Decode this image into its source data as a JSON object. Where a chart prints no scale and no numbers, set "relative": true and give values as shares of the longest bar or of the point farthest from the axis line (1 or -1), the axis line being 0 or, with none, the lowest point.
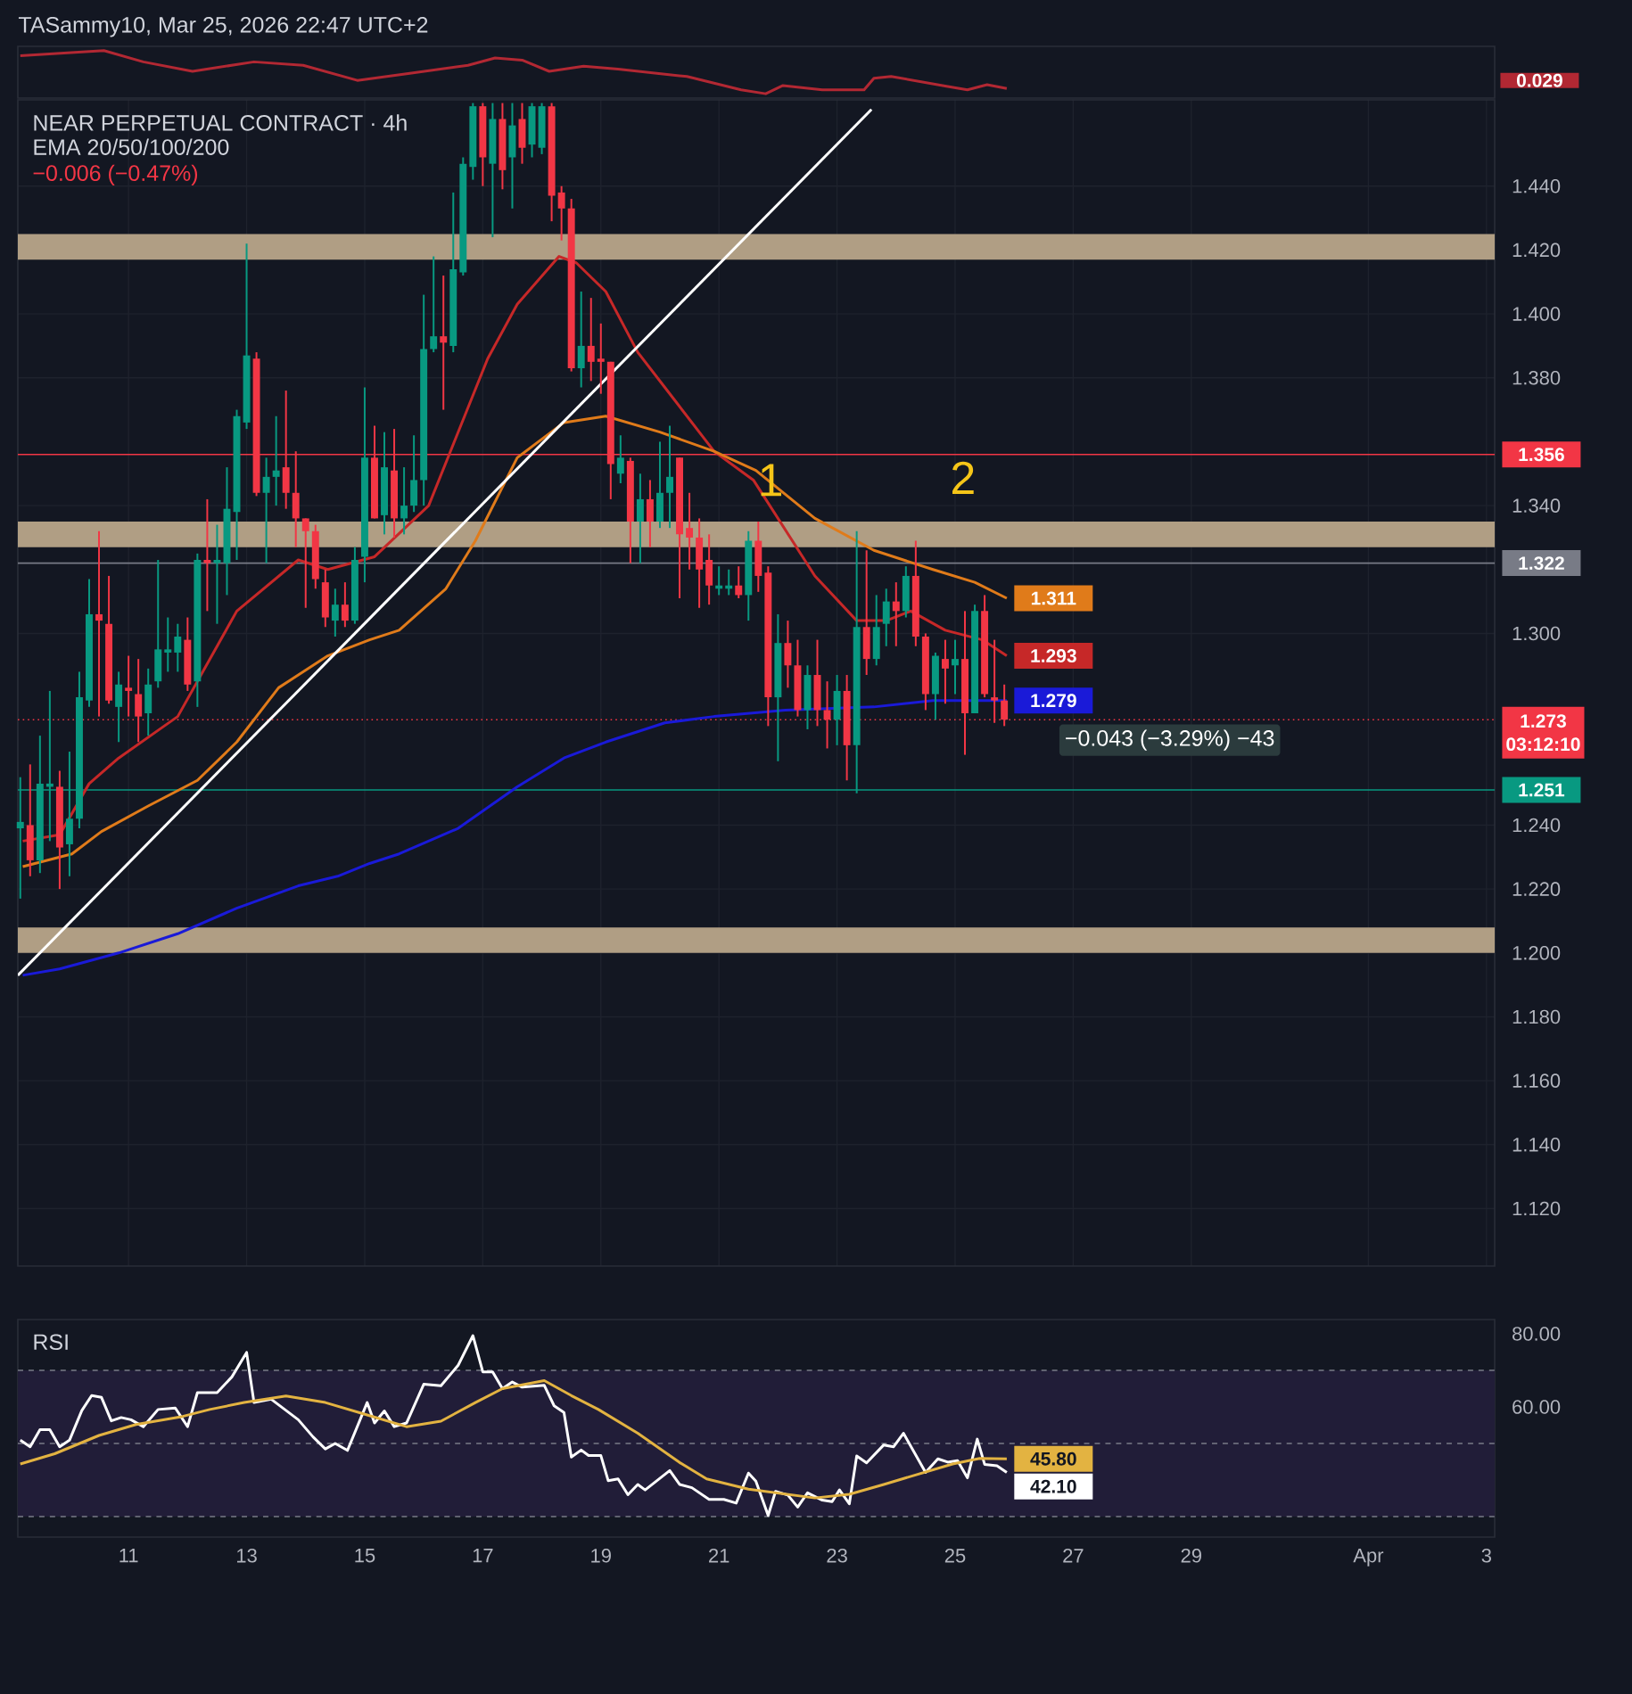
{
  "chart_data": [
    {
      "type": "line",
      "title": "TASammy10, Mar 25, 2026 22:47 UTC+2",
      "relative": true,
      "xlim": [
        "2026-03-09T03:00",
        "2026-04-03T03:20"
      ],
      "series": [
        {
          "color": "#b22833",
          "x": [
            "2026-03-09T04:00",
            "2026-03-10T14:00",
            "2026-03-11T06:00",
            "2026-03-12T02:00",
            "2026-03-13T03:00",
            "2026-03-13T23:00",
            "2026-03-14T21:00",
            "2026-03-15T19:00",
            "2026-03-16T18:00",
            "2026-03-17T05:00",
            "2026-03-17T16:00",
            "2026-03-18T03:00",
            "2026-03-18T17:00",
            "2026-03-19T07:00",
            "2026-03-20T11:00",
            "2026-03-21T09:00",
            "2026-03-21T19:00",
            "2026-03-22T02:00",
            "2026-03-22T18:00",
            "2026-03-23T11:00",
            "2026-03-23T15:00",
            "2026-03-23T22:00",
            "2026-03-24T21:00",
            "2026-03-25T05:00",
            "2026-03-25T13:00",
            "2026-03-25T21:00"
          ],
          "values": [
            0.88,
            1.0,
            0.74,
            0.52,
            0.74,
            0.66,
            0.31,
            0.48,
            0.66,
            0.83,
            0.78,
            0.52,
            0.64,
            0.57,
            0.4,
            0.09,
            0,
            0.19,
            0.09,
            0.09,
            0.36,
            0.4,
            0.17,
            0.09,
            0.21,
            0.12
          ]
        }
      ],
      "annotations": [
        "0.029"
      ]
    },
    {
      "type": "candlestick",
      "title": "NEAR PERPETUAL CONTRACT · 4h",
      "subtitle": "EMA 20/50/100/200",
      "xlim": [
        "2026-03-09T03:00",
        "2026-04-03T03:20"
      ],
      "ylim": [
        1.102,
        1.467
      ],
      "tick_labels": "y",
      "grid": true,
      "xticks": [
        "2026-03-11",
        "2026-03-13",
        "2026-03-15",
        "2026-03-17",
        "2026-03-19",
        "2026-03-21",
        "2026-03-23",
        "2026-03-25",
        "2026-03-27",
        "2026-03-29",
        "2026-04-01",
        "2026-04-03"
      ],
      "yticks": [
        {
          "value": 1.12,
          "label": "1.120"
        },
        {
          "value": 1.14,
          "label": "1.140"
        },
        {
          "value": 1.16,
          "label": "1.160"
        },
        {
          "value": 1.18,
          "label": "1.180"
        },
        {
          "value": 1.2,
          "label": "1.200"
        },
        {
          "value": 1.22,
          "label": "1.220"
        },
        {
          "value": 1.24,
          "label": "1.240"
        },
        {
          "value": 1.3,
          "label": "1.300"
        },
        {
          "value": 1.34,
          "label": "1.340"
        },
        {
          "value": 1.38,
          "label": "1.380"
        },
        {
          "value": 1.4,
          "label": "1.400"
        },
        {
          "value": 1.42,
          "label": "1.420"
        },
        {
          "value": 1.44,
          "label": "1.440"
        }
      ],
      "x": [
        "2026-03-09T04:00",
        "2026-03-09T08:00",
        "2026-03-09T12:00",
        "2026-03-09T16:00",
        "2026-03-09T20:00",
        "2026-03-10T00:00",
        "2026-03-10T04:00",
        "2026-03-10T08:00",
        "2026-03-10T12:00",
        "2026-03-10T16:00",
        "2026-03-10T20:00",
        "2026-03-11T00:00",
        "2026-03-11T04:00",
        "2026-03-11T08:00",
        "2026-03-11T12:00",
        "2026-03-11T16:00",
        "2026-03-11T20:00",
        "2026-03-12T00:00",
        "2026-03-12T04:00",
        "2026-03-12T08:00",
        "2026-03-12T12:00",
        "2026-03-12T16:00",
        "2026-03-12T20:00",
        "2026-03-13T00:00",
        "2026-03-13T04:00",
        "2026-03-13T08:00",
        "2026-03-13T12:00",
        "2026-03-13T16:00",
        "2026-03-13T20:00",
        "2026-03-14T00:00",
        "2026-03-14T04:00",
        "2026-03-14T08:00",
        "2026-03-14T12:00",
        "2026-03-14T16:00",
        "2026-03-14T20:00",
        "2026-03-15T00:00",
        "2026-03-15T04:00",
        "2026-03-15T08:00",
        "2026-03-15T12:00",
        "2026-03-15T16:00",
        "2026-03-15T20:00",
        "2026-03-16T00:00",
        "2026-03-16T04:00",
        "2026-03-16T08:00",
        "2026-03-16T12:00",
        "2026-03-16T16:00",
        "2026-03-16T20:00",
        "2026-03-17T00:00",
        "2026-03-17T04:00",
        "2026-03-17T08:00",
        "2026-03-17T12:00",
        "2026-03-17T16:00",
        "2026-03-17T20:00",
        "2026-03-18T00:00",
        "2026-03-18T04:00",
        "2026-03-18T08:00",
        "2026-03-18T12:00",
        "2026-03-18T16:00",
        "2026-03-18T20:00",
        "2026-03-19T00:00",
        "2026-03-19T04:00",
        "2026-03-19T08:00",
        "2026-03-19T12:00",
        "2026-03-19T16:00",
        "2026-03-19T20:00",
        "2026-03-20T00:00",
        "2026-03-20T04:00",
        "2026-03-20T08:00",
        "2026-03-20T12:00",
        "2026-03-20T16:00",
        "2026-03-20T20:00",
        "2026-03-21T00:00",
        "2026-03-21T04:00",
        "2026-03-21T08:00",
        "2026-03-21T12:00",
        "2026-03-21T16:00",
        "2026-03-21T20:00",
        "2026-03-22T00:00",
        "2026-03-22T04:00",
        "2026-03-22T08:00",
        "2026-03-22T12:00",
        "2026-03-22T16:00",
        "2026-03-22T20:00",
        "2026-03-23T00:00",
        "2026-03-23T04:00",
        "2026-03-23T08:00",
        "2026-03-23T12:00",
        "2026-03-23T16:00",
        "2026-03-23T20:00",
        "2026-03-24T00:00",
        "2026-03-24T04:00",
        "2026-03-24T08:00",
        "2026-03-24T12:00",
        "2026-03-24T16:00",
        "2026-03-24T20:00",
        "2026-03-25T00:00",
        "2026-03-25T04:00",
        "2026-03-25T08:00",
        "2026-03-25T12:00",
        "2026-03-25T16:00",
        "2026-03-25T20:00"
      ],
      "ohlc": [
        [
          1.239,
          1.255,
          1.217,
          1.241
        ],
        [
          1.24,
          1.259,
          1.224,
          1.229
        ],
        [
          1.229,
          1.268,
          1.225,
          1.253
        ],
        [
          1.252,
          1.282,
          1.235,
          1.253
        ],
        [
          1.252,
          1.257,
          1.22,
          1.233
        ],
        [
          1.234,
          1.263,
          1.224,
          1.242
        ],
        [
          1.242,
          1.288,
          1.239,
          1.28
        ],
        [
          1.279,
          1.317,
          1.277,
          1.306
        ],
        [
          1.306,
          1.332,
          1.274,
          1.304
        ],
        [
          1.303,
          1.318,
          1.278,
          1.279
        ],
        [
          1.277,
          1.288,
          1.266,
          1.284
        ],
        [
          1.283,
          1.293,
          1.274,
          1.282
        ],
        [
          1.281,
          1.292,
          1.266,
          1.274
        ],
        [
          1.275,
          1.289,
          1.268,
          1.284
        ],
        [
          1.285,
          1.323,
          1.283,
          1.295
        ],
        [
          1.294,
          1.305,
          1.288,
          1.295
        ],
        [
          1.294,
          1.303,
          1.288,
          1.299
        ],
        [
          1.298,
          1.305,
          1.282,
          1.284
        ],
        [
          1.285,
          1.325,
          1.277,
          1.323
        ],
        [
          1.323,
          1.342,
          1.307,
          1.322
        ],
        [
          1.322,
          1.334,
          1.303,
          1.323
        ],
        [
          1.322,
          1.352,
          1.312,
          1.339
        ],
        [
          1.338,
          1.37,
          1.323,
          1.368
        ],
        [
          1.366,
          1.422,
          1.364,
          1.387
        ],
        [
          1.386,
          1.388,
          1.343,
          1.344
        ],
        [
          1.344,
          1.355,
          1.322,
          1.349
        ],
        [
          1.349,
          1.368,
          1.34,
          1.351
        ],
        [
          1.352,
          1.376,
          1.339,
          1.344
        ],
        [
          1.344,
          1.357,
          1.327,
          1.336
        ],
        [
          1.336,
          1.336,
          1.308,
          1.332
        ],
        [
          1.332,
          1.334,
          1.314,
          1.317
        ],
        [
          1.316,
          1.32,
          1.302,
          1.305
        ],
        [
          1.304,
          1.314,
          1.299,
          1.309
        ],
        [
          1.309,
          1.316,
          1.302,
          1.304
        ],
        [
          1.304,
          1.327,
          1.303,
          1.323
        ],
        [
          1.324,
          1.377,
          1.316,
          1.355
        ],
        [
          1.355,
          1.365,
          1.336,
          1.336
        ],
        [
          1.337,
          1.363,
          1.331,
          1.352
        ],
        [
          1.351,
          1.364,
          1.33,
          1.336
        ],
        [
          1.336,
          1.352,
          1.331,
          1.34
        ],
        [
          1.34,
          1.362,
          1.338,
          1.348
        ],
        [
          1.348,
          1.406,
          1.34,
          1.389
        ],
        [
          1.389,
          1.418,
          1.388,
          1.393
        ],
        [
          1.393,
          1.412,
          1.37,
          1.391
        ],
        [
          1.39,
          1.438,
          1.388,
          1.414
        ],
        [
          1.413,
          1.449,
          1.412,
          1.447
        ],
        [
          1.446,
          1.466,
          1.442,
          1.465
        ],
        [
          1.465,
          1.466,
          1.44,
          1.449
        ],
        [
          1.447,
          1.466,
          1.424,
          1.461
        ],
        [
          1.461,
          1.466,
          1.439,
          1.445
        ],
        [
          1.449,
          1.466,
          1.433,
          1.459
        ],
        [
          1.461,
          1.466,
          1.447,
          1.452
        ],
        [
          1.453,
          1.466,
          1.449,
          1.465
        ],
        [
          1.452,
          1.466,
          1.45,
          1.465
        ],
        [
          1.465,
          1.466,
          1.429,
          1.437
        ],
        [
          1.438,
          1.44,
          1.423,
          1.433
        ],
        [
          1.433,
          1.436,
          1.382,
          1.383
        ],
        [
          1.383,
          1.407,
          1.377,
          1.39
        ],
        [
          1.39,
          1.405,
          1.379,
          1.385
        ],
        [
          1.386,
          1.397,
          1.375,
          1.385
        ],
        [
          1.385,
          1.385,
          1.342,
          1.353
        ],
        [
          1.35,
          1.362,
          1.347,
          1.355
        ],
        [
          1.354,
          1.355,
          1.322,
          1.335
        ],
        [
          1.335,
          1.35,
          1.322,
          1.342
        ],
        [
          1.342,
          1.348,
          1.327,
          1.335
        ],
        [
          1.335,
          1.36,
          1.333,
          1.344
        ],
        [
          1.344,
          1.365,
          1.333,
          1.349
        ],
        [
          1.355,
          1.355,
          1.311,
          1.331
        ],
        [
          1.333,
          1.344,
          1.32,
          1.33
        ],
        [
          1.33,
          1.336,
          1.308,
          1.32
        ],
        [
          1.323,
          1.331,
          1.309,
          1.315
        ],
        [
          1.314,
          1.321,
          1.312,
          1.315
        ],
        [
          1.314,
          1.32,
          1.312,
          1.315
        ],
        [
          1.315,
          1.321,
          1.311,
          1.312
        ],
        [
          1.312,
          1.332,
          1.304,
          1.329
        ],
        [
          1.329,
          1.335,
          1.313,
          1.318
        ],
        [
          1.319,
          1.321,
          1.271,
          1.28
        ],
        [
          1.28,
          1.306,
          1.26,
          1.297
        ],
        [
          1.297,
          1.304,
          1.283,
          1.29
        ],
        [
          1.29,
          1.298,
          1.274,
          1.276
        ],
        [
          1.276,
          1.29,
          1.27,
          1.287
        ],
        [
          1.287,
          1.298,
          1.271,
          1.276
        ],
        [
          1.276,
          1.285,
          1.264,
          1.273
        ],
        [
          1.273,
          1.287,
          1.265,
          1.282
        ],
        [
          1.282,
          1.287,
          1.254,
          1.265
        ],
        [
          1.265,
          1.332,
          1.25,
          1.302
        ],
        [
          1.302,
          1.326,
          1.287,
          1.292
        ],
        [
          1.292,
          1.312,
          1.29,
          1.302
        ],
        [
          1.303,
          1.314,
          1.296,
          1.31
        ],
        [
          1.31,
          1.316,
          1.296,
          1.307
        ],
        [
          1.307,
          1.321,
          1.305,
          1.318
        ],
        [
          1.318,
          1.329,
          1.296,
          1.299
        ],
        [
          1.299,
          1.3,
          1.276,
          1.281
        ],
        [
          1.281,
          1.294,
          1.273,
          1.293
        ],
        [
          1.292,
          1.298,
          1.278,
          1.289
        ],
        [
          1.29,
          1.298,
          1.281,
          1.292
        ],
        [
          1.292,
          1.307,
          1.262,
          1.275
        ],
        [
          1.275,
          1.309,
          1.275,
          1.307
        ],
        [
          1.307,
          1.312,
          1.28,
          1.281
        ],
        [
          1.28,
          1.298,
          1.272,
          1.279
        ],
        [
          1.279,
          1.284,
          1.271,
          1.273
        ]
      ],
      "series": [
        {
          "type": "line",
          "color": "#c62828",
          "x": [
            "2026-03-09T05:00",
            "2026-03-09T20:00",
            "2026-03-10T08:00",
            "2026-03-10T20:00",
            "2026-03-11T20:00",
            "2026-03-12T20:00",
            "2026-03-13T21:00",
            "2026-03-14T09:00",
            "2026-03-15T04:00",
            "2026-03-16T02:00",
            "2026-03-17T02:00",
            "2026-03-17T14:00",
            "2026-03-18T07:00",
            "2026-03-18T14:00",
            "2026-03-19T02:00",
            "2026-03-19T15:00",
            "2026-03-20T02:00",
            "2026-03-20T22:00",
            "2026-03-21T14:00",
            "2026-03-22T15:00",
            "2026-03-23T08:00",
            "2026-03-23T20:00",
            "2026-03-24T06:00",
            "2026-03-24T20:00",
            "2026-03-25T11:00",
            "2026-03-25T21:00"
          ],
          "values": [
            1.235,
            1.237,
            1.253,
            1.261,
            1.274,
            1.307,
            1.323,
            1.32,
            1.324,
            1.34,
            1.386,
            1.403,
            1.418,
            1.416,
            1.407,
            1.388,
            1.377,
            1.357,
            1.348,
            1.318,
            1.304,
            1.304,
            1.307,
            1.301,
            1.298,
            1.293
          ],
          "value_labels": [
            null,
            null,
            null,
            null,
            null,
            null,
            null,
            null,
            null,
            null,
            null,
            null,
            null,
            null,
            null,
            null,
            null,
            null,
            null,
            null,
            null,
            null,
            null,
            null,
            null,
            "1.293"
          ]
        },
        {
          "type": "line",
          "color": "#e07b1a",
          "x": [
            "2026-03-09T05:00",
            "2026-03-10T01:00",
            "2026-03-10T13:00",
            "2026-03-11T08:00",
            "2026-03-12T04:00",
            "2026-03-12T20:00",
            "2026-03-13T13:00",
            "2026-03-14T09:00",
            "2026-03-15T02:00",
            "2026-03-15T14:00",
            "2026-03-16T09:00",
            "2026-03-16T21:00",
            "2026-03-17T14:00",
            "2026-03-18T09:00",
            "2026-03-19T02:00",
            "2026-03-20T00:00",
            "2026-03-20T22:00",
            "2026-03-21T15:00",
            "2026-03-22T15:00",
            "2026-03-23T15:00",
            "2026-03-24T15:00",
            "2026-03-25T08:00",
            "2026-03-25T21:00"
          ],
          "values": [
            1.227,
            1.231,
            1.238,
            1.246,
            1.254,
            1.266,
            1.283,
            1.293,
            1.298,
            1.301,
            1.314,
            1.329,
            1.355,
            1.366,
            1.368,
            1.363,
            1.357,
            1.351,
            1.336,
            1.326,
            1.32,
            1.316,
            1.311
          ],
          "value_labels": [
            null,
            null,
            null,
            null,
            null,
            null,
            null,
            null,
            null,
            null,
            null,
            null,
            null,
            null,
            null,
            null,
            null,
            null,
            null,
            null,
            null,
            null,
            "1.311"
          ]
        },
        {
          "type": "line",
          "color": "#1a1ad8",
          "x": [
            "2026-03-09T05:00",
            "2026-03-09T20:00",
            "2026-03-10T20:00",
            "2026-03-11T20:00",
            "2026-03-12T20:00",
            "2026-03-13T21:00",
            "2026-03-14T13:00",
            "2026-03-15T02:00",
            "2026-03-15T14:00",
            "2026-03-16T14:00",
            "2026-03-17T14:00",
            "2026-03-18T09:00",
            "2026-03-19T02:00",
            "2026-03-20T02:00",
            "2026-03-20T22:00",
            "2026-03-22T03:00",
            "2026-03-23T15:00",
            "2026-03-24T15:00",
            "2026-03-25T21:00"
          ],
          "values": [
            1.193,
            1.195,
            1.2,
            1.206,
            1.214,
            1.221,
            1.224,
            1.228,
            1.231,
            1.239,
            1.252,
            1.261,
            1.266,
            1.272,
            1.274,
            1.276,
            1.277,
            1.279,
            1.279
          ],
          "value_labels": [
            null,
            null,
            null,
            null,
            null,
            null,
            null,
            null,
            null,
            null,
            null,
            null,
            null,
            null,
            null,
            null,
            null,
            null,
            "1.279"
          ]
        },
        {
          "type": "line",
          "color": "#ffffff",
          "x": [
            "2026-03-09T03:00",
            "2026-03-23T14:00"
          ],
          "values": [
            1.193,
            1.464
          ]
        }
      ],
      "bands": [
        {
          "axis": "y",
          "from": 1.417,
          "to": 1.425,
          "color": "#b09e84"
        },
        {
          "axis": "y",
          "from": 1.327,
          "to": 1.335,
          "color": "#b09e84"
        },
        {
          "axis": "y",
          "from": 1.2,
          "to": 1.208,
          "color": "#b09e84"
        }
      ],
      "ref_lines": [
        {
          "axis": "y",
          "value": 1.356,
          "label": "1.356",
          "color": "#f23645"
        },
        {
          "axis": "y",
          "value": 1.322,
          "label": "1.322",
          "color": "#787b86"
        },
        {
          "axis": "y",
          "value": 1.251,
          "label": "1.251",
          "color": "#089981"
        },
        {
          "axis": "y",
          "value": 1.273,
          "label": "1.273",
          "color": "#f23645",
          "line_style": "dotted"
        }
      ],
      "annotations": [
        {
          "text": "1",
          "x": "2026-03-21T21:00",
          "y": 1.348
        },
        "2",
        "−0.043 (−3.29%) −43",
        "−0.006 (−0.47%)",
        "03:12:10"
      ]
    },
    {
      "type": "line",
      "title": "RSI",
      "xlim": [
        "2026-03-09T03:00",
        "2026-04-03T03:20"
      ],
      "ylim": [
        24.4,
        83.9
      ],
      "xticks": [
        {
          "value": "2026-03-11",
          "label": "11"
        },
        {
          "value": "2026-03-13",
          "label": "13"
        },
        {
          "value": "2026-03-15",
          "label": "15"
        },
        {
          "value": "2026-03-17",
          "label": "17"
        },
        {
          "value": "2026-03-19",
          "label": "19"
        },
        {
          "value": "2026-03-21",
          "label": "21"
        },
        {
          "value": "2026-03-23",
          "label": "23"
        },
        {
          "value": "2026-03-25",
          "label": "25"
        },
        {
          "value": "2026-03-27",
          "label": "27"
        },
        {
          "value": "2026-03-29",
          "label": "29"
        },
        {
          "value": "2026-04-01",
          "label": "Apr"
        },
        {
          "value": "2026-04-03",
          "label": "3"
        }
      ],
      "yticks": [
        {
          "value": 60,
          "label": "60.00"
        },
        {
          "value": 80,
          "label": "80.00"
        }
      ],
      "bands": [
        {
          "axis": "y",
          "from": 30,
          "to": 70,
          "color": "#211d38"
        }
      ],
      "ref_lines": [
        {
          "axis": "y",
          "value": 70,
          "color": "#787b86",
          "line_style": "dashed"
        },
        {
          "axis": "y",
          "value": 50,
          "color": "#787b86",
          "line_style": "dashed"
        },
        {
          "axis": "y",
          "value": 30,
          "color": "#787b86",
          "line_style": "dashed"
        }
      ],
      "series": [
        {
          "color": "#ffffff",
          "x": [
            "2026-03-09T04:00",
            "2026-03-09T08:00",
            "2026-03-09T12:00",
            "2026-03-09T16:00",
            "2026-03-09T20:00",
            "2026-03-10T00:00",
            "2026-03-10T05:00",
            "2026-03-10T09:00",
            "2026-03-10T13:00",
            "2026-03-10T17:00",
            "2026-03-10T21:00",
            "2026-03-11T01:00",
            "2026-03-11T06:00",
            "2026-03-11T12:00",
            "2026-03-11T19:00",
            "2026-03-12T00:00",
            "2026-03-12T04:00",
            "2026-03-12T12:00",
            "2026-03-12T18:00",
            "2026-03-13T00:00",
            "2026-03-13T03:00",
            "2026-03-13T10:00",
            "2026-03-13T21:00",
            "2026-03-14T03:00",
            "2026-03-14T08:00",
            "2026-03-14T12:00",
            "2026-03-14T17:00",
            "2026-03-15T01:00",
            "2026-03-15T04:00",
            "2026-03-15T08:00",
            "2026-03-15T12:00",
            "2026-03-15T17:00",
            "2026-03-16T00:00",
            "2026-03-16T07:00",
            "2026-03-16T14:00",
            "2026-03-16T20:00",
            "2026-03-17T00:00",
            "2026-03-17T04:00",
            "2026-03-17T08:00",
            "2026-03-17T12:00",
            "2026-03-17T16:00",
            "2026-03-18T01:00",
            "2026-03-18T05:00",
            "2026-03-18T09:00",
            "2026-03-18T12:00",
            "2026-03-18T16:00",
            "2026-03-18T19:00",
            "2026-03-19T00:00",
            "2026-03-19T03:00",
            "2026-03-19T07:00",
            "2026-03-19T11:00",
            "2026-03-19T15:00",
            "2026-03-19T18:00",
            "2026-03-20T04:00",
            "2026-03-20T08:00",
            "2026-03-20T13:00",
            "2026-03-20T20:00",
            "2026-03-21T02:00",
            "2026-03-21T07:00",
            "2026-03-21T12:00",
            "2026-03-21T15:00",
            "2026-03-21T20:00",
            "2026-03-21T23:00",
            "2026-03-22T04:00",
            "2026-03-22T08:00",
            "2026-03-22T12:00",
            "2026-03-22T18:00",
            "2026-03-22T22:00",
            "2026-03-23T01:00",
            "2026-03-23T05:00",
            "2026-03-23T08:00",
            "2026-03-23T12:00",
            "2026-03-23T19:00",
            "2026-03-23T23:00",
            "2026-03-24T03:00",
            "2026-03-24T12:00",
            "2026-03-24T17:00",
            "2026-03-24T21:00",
            "2026-03-25T01:00",
            "2026-03-25T05:00",
            "2026-03-25T09:00",
            "2026-03-25T12:00",
            "2026-03-25T17:00",
            "2026-03-25T21:00"
          ],
          "values": [
            50.9,
            49.1,
            53.8,
            53.8,
            49.1,
            50.9,
            59.0,
            63.1,
            62.6,
            56.2,
            57.1,
            56.5,
            54.6,
            59.3,
            59.7,
            54.6,
            63.9,
            63.9,
            68.2,
            74.9,
            61.2,
            62.1,
            56.5,
            51.8,
            48.5,
            50.0,
            48.1,
            61.2,
            55.6,
            58.9,
            54.6,
            55.6,
            66.2,
            65.8,
            71.4,
            79.5,
            69.6,
            69.6,
            65.0,
            66.8,
            65.4,
            65.9,
            60.3,
            58.5,
            46.3,
            48.2,
            46.7,
            46.7,
            39.8,
            40.3,
            36.0,
            38.8,
            37.3,
            42.6,
            38.8,
            37.9,
            34.7,
            34.7,
            33.7,
            41.9,
            39.7,
            30.3,
            36.9,
            35.9,
            32.6,
            36.5,
            34.5,
            34.1,
            37.3,
            33.5,
            46.6,
            44.7,
            49.6,
            49.1,
            52.8,
            42.1,
            45.8,
            44.9,
            45.3,
            40.6,
            51.2,
            44.3,
            43.9,
            42.1
          ],
          "value_labels": [
            null,
            null,
            null,
            null,
            null,
            null,
            null,
            null,
            null,
            null,
            null,
            null,
            null,
            null,
            null,
            null,
            null,
            null,
            null,
            null,
            null,
            null,
            null,
            null,
            null,
            null,
            null,
            null,
            null,
            null,
            null,
            null,
            null,
            null,
            null,
            null,
            null,
            null,
            null,
            null,
            null,
            null,
            null,
            null,
            null,
            null,
            null,
            null,
            null,
            null,
            null,
            null,
            null,
            null,
            null,
            null,
            null,
            null,
            null,
            null,
            null,
            null,
            null,
            null,
            null,
            null,
            null,
            null,
            null,
            null,
            null,
            null,
            null,
            null,
            null,
            null,
            null,
            null,
            null,
            null,
            null,
            null,
            null,
            "42.10"
          ]
        },
        {
          "color": "#e3b341",
          "x": [
            "2026-03-09T04:00",
            "2026-03-09T18:00",
            "2026-03-10T12:00",
            "2026-03-11T03:00",
            "2026-03-11T22:00",
            "2026-03-12T09:00",
            "2026-03-12T23:00",
            "2026-03-13T16:00",
            "2026-03-14T08:00",
            "2026-03-15T01:00",
            "2026-03-15T17:00",
            "2026-03-16T07:00",
            "2026-03-16T21:00",
            "2026-03-17T08:00",
            "2026-03-18T01:00",
            "2026-03-18T12:00",
            "2026-03-18T23:00",
            "2026-03-19T15:00",
            "2026-03-20T08:00",
            "2026-03-20T19:00",
            "2026-03-21T12:00",
            "2026-03-22T15:00",
            "2026-03-23T05:00",
            "2026-03-23T19:00",
            "2026-03-24T09:00",
            "2026-03-24T23:00",
            "2026-03-25T10:00",
            "2026-03-25T21:00"
          ],
          "values": [
            44.4,
            47.2,
            52.2,
            55.2,
            57.4,
            59.3,
            61.2,
            63.0,
            61.2,
            57.8,
            54.6,
            56.1,
            61.2,
            65.0,
            67.2,
            63.1,
            59.3,
            52.8,
            44.8,
            40.3,
            37.5,
            35.1,
            36.1,
            38.8,
            41.6,
            44.4,
            45.9,
            45.8
          ],
          "value_labels": [
            null,
            null,
            null,
            null,
            null,
            null,
            null,
            null,
            null,
            null,
            null,
            null,
            null,
            null,
            null,
            null,
            null,
            null,
            null,
            null,
            null,
            null,
            null,
            null,
            null,
            null,
            null,
            "45.80"
          ]
        }
      ]
    }
  ]
}
